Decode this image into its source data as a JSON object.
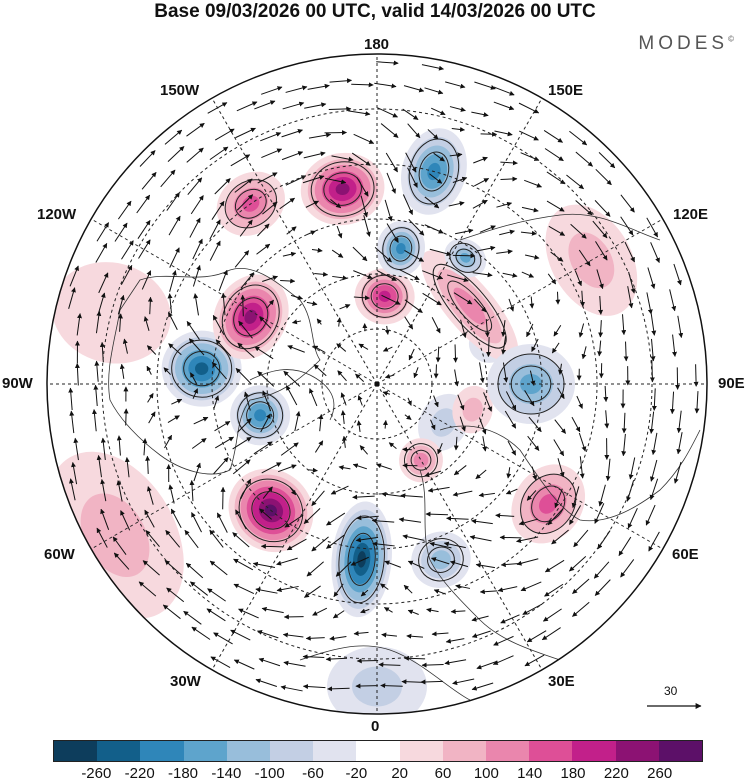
{
  "title": "Base 09/03/2026 00 UTC, valid 14/03/2026 00 UTC",
  "brand": "MODES",
  "brand_mark": "©",
  "longitude_labels": {
    "lon_180": "180",
    "lon_150w": "150W",
    "lon_150e": "150E",
    "lon_120w": "120W",
    "lon_120e": "120E",
    "lon_90w": "90W",
    "lon_90e": "90E",
    "lon_60w": "60W",
    "lon_60e": "60E",
    "lon_30w": "30W",
    "lon_30e": "30E",
    "lon_0": "0"
  },
  "reference_vector": "30",
  "colorbar": {
    "ticks": [
      "-260",
      "-220",
      "-180",
      "-140",
      "-100",
      "-60",
      "-20",
      "20",
      "60",
      "100",
      "140",
      "180",
      "220",
      "260"
    ],
    "colors": [
      "#0d3d5c",
      "#125f8a",
      "#2f86b9",
      "#5ea4cc",
      "#98bedb",
      "#c3cfe4",
      "#e1e3ef",
      "#ffffff",
      "#f7d9de",
      "#f1b4c4",
      "#ea86ad",
      "#de4f97",
      "#c2208a",
      "#8c1273",
      "#5c1068"
    ]
  },
  "anomalies": [
    {
      "lon": 165,
      "colat": 40,
      "value": -200,
      "sx": 32,
      "sy": 44
    },
    {
      "lon": 170,
      "colat": 25,
      "value": -190,
      "sx": 24,
      "sy": 28
    },
    {
      "lon": -145,
      "colat": 40,
      "value": 140,
      "sx": 36,
      "sy": 30
    },
    {
      "lon": -170,
      "colat": 36,
      "value": 220,
      "sx": 42,
      "sy": 36
    },
    {
      "lon": 145,
      "colat": 28,
      "value": -150,
      "sx": 22,
      "sy": 18
    },
    {
      "lon": 175,
      "colat": 16,
      "value": 180,
      "sx": 30,
      "sy": 28
    },
    {
      "lon": -118,
      "colat": 26,
      "value": 250,
      "sx": 44,
      "sy": 36
    },
    {
      "lon": -95,
      "colat": 32,
      "value": -230,
      "sx": 38,
      "sy": 40
    },
    {
      "lon": -75,
      "colat": 22,
      "value": -200,
      "sx": 30,
      "sy": 30
    },
    {
      "lon": -40,
      "colat": 30,
      "value": 260,
      "sx": 44,
      "sy": 40
    },
    {
      "lon": -5,
      "colat": 32,
      "value": -260,
      "sx": 30,
      "sy": 58
    },
    {
      "lon": 20,
      "colat": 34,
      "value": -120,
      "sx": 30,
      "sy": 28
    },
    {
      "lon": 55,
      "colat": 38,
      "value": 150,
      "sx": 42,
      "sy": 34
    },
    {
      "lon": 30,
      "colat": 16,
      "value": 120,
      "sx": 22,
      "sy": 22
    },
    {
      "lon": 90,
      "colat": 28,
      "value": -140,
      "sx": 40,
      "sy": 44
    },
    {
      "lon": 110,
      "colat": 22,
      "value": -90,
      "sx": 20,
      "sy": 22
    },
    {
      "lon": 130,
      "colat": 22,
      "value": 100,
      "sx": 70,
      "sy": 24
    },
    {
      "lon": 75,
      "colat": 18,
      "value": 90,
      "sx": 24,
      "sy": 20
    },
    {
      "lon": 60,
      "colat": 14,
      "value": -80,
      "sx": 30,
      "sy": 24
    },
    {
      "lon": -60,
      "colat": 55,
      "value": 70,
      "sx": 90,
      "sy": 60
    },
    {
      "lon": 120,
      "colat": 45,
      "value": 60,
      "sx": 60,
      "sy": 40
    },
    {
      "lon": -105,
      "colat": 50,
      "value": 50,
      "sx": 50,
      "sy": 60
    },
    {
      "lon": 0,
      "colat": 55,
      "value": -60,
      "sx": 50,
      "sy": 40
    }
  ]
}
